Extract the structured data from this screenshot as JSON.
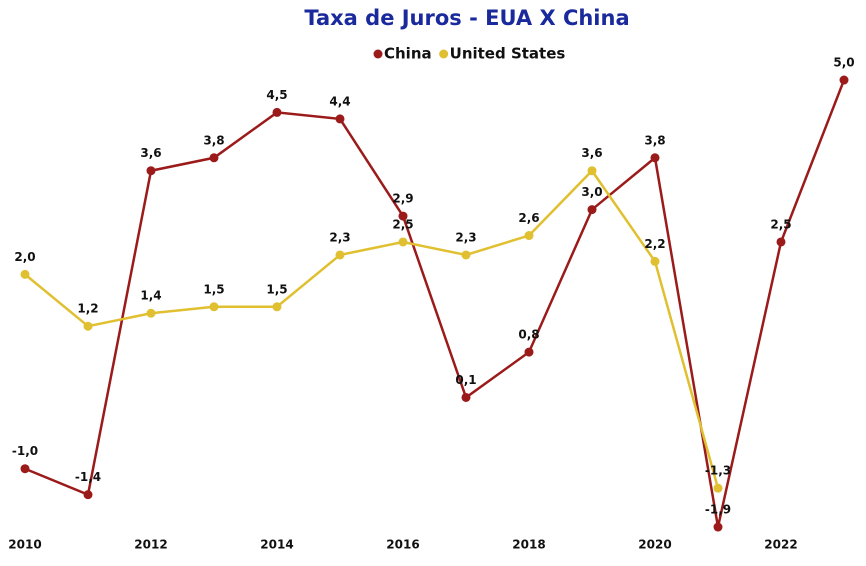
{
  "chart_data": {
    "type": "line",
    "title": "Taxa de Juros - EUA X China",
    "x": [
      2010,
      2011,
      2012,
      2013,
      2014,
      2015,
      2016,
      2017,
      2018,
      2019,
      2020,
      2021,
      2022,
      2023
    ],
    "xlim": [
      2010,
      2023
    ],
    "xticks": [
      2010,
      2012,
      2014,
      2016,
      2018,
      2020,
      2022
    ],
    "ylim": [
      -2.0,
      5.3
    ],
    "legend": "top",
    "series": [
      {
        "name": "China",
        "color": "#9b1b1b",
        "values": [
          -1.0,
          -1.4,
          3.6,
          3.8,
          4.5,
          4.4,
          2.9,
          0.1,
          0.8,
          3.0,
          3.8,
          -1.9,
          2.5,
          5.0
        ],
        "value_labels": [
          "-1,0",
          "-1,4",
          "3,6",
          "3,8",
          "4,5",
          "4,4",
          "2,9",
          "0,1",
          "0,8",
          "3,0",
          "3,8",
          "-1,9",
          "2,5",
          "5,0"
        ]
      },
      {
        "name": "United States",
        "color": "#e0c030",
        "values": [
          2.0,
          1.2,
          1.4,
          1.5,
          1.5,
          2.3,
          2.5,
          2.3,
          2.6,
          3.6,
          2.2,
          -1.3,
          null,
          null
        ],
        "value_labels": [
          "2,0",
          "1,2",
          "1,4",
          "1,5",
          "1,5",
          "2,3",
          "2,5",
          "2,3",
          "2,6",
          "3,6",
          "2,2",
          "-1,3",
          null,
          null
        ]
      }
    ]
  }
}
